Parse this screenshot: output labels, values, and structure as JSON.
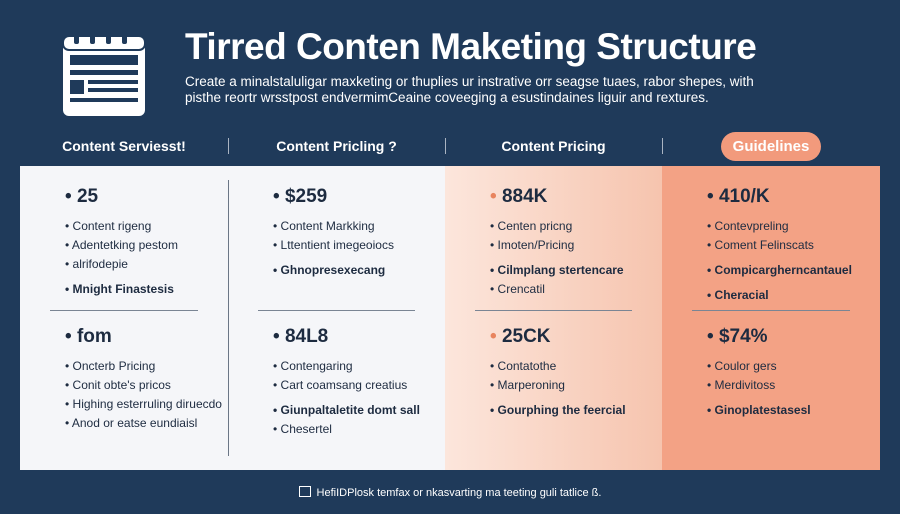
{
  "header": {
    "title": "Tirred Conten Maketing Structure",
    "subtitle": [
      "Create a minalstaluligar maxketing or thuplies ur instrative orr seagse tuaes, rabor shepes, with",
      "pisthe reortr wrsstpost endvermimCeaine coveeging a esustindaines liguir and rextures."
    ]
  },
  "columns": [
    {
      "heading": "Content Serviesst!",
      "sections": [
        {
          "headline": "25",
          "items": [
            {
              "text": "Content rigeng"
            },
            {
              "text": "Adentetking pestom"
            },
            {
              "text": "alrifodepie"
            },
            {
              "text": "Mnight Finastesis",
              "strong": true
            }
          ]
        },
        {
          "headline": "fom",
          "items": [
            {
              "text": "Oncterb Pricing"
            },
            {
              "text": "Conit obte's pricos"
            },
            {
              "text": "Highing esterruling diruecdo"
            },
            {
              "text": "Anod or eatse eundiaisl"
            }
          ]
        }
      ]
    },
    {
      "heading": "Content Pricling ?",
      "sections": [
        {
          "headline": "$259",
          "items": [
            {
              "text": "Content Markking"
            },
            {
              "text": "Lttentient imegeoiocs"
            },
            {
              "text": "Ghnopresexecang",
              "strong": true
            }
          ]
        },
        {
          "headline": "84L8",
          "items": [
            {
              "text": "Contengaring"
            },
            {
              "text": "Cart coamsang creatius"
            },
            {
              "text": "Giunpaltaletite domt sall",
              "strong": true
            },
            {
              "text": "Chesertel"
            }
          ]
        }
      ]
    },
    {
      "heading": "Content Pricing",
      "sections": [
        {
          "headline": "884K",
          "items": [
            {
              "text": "Centen pricng"
            },
            {
              "text": "Imoten/Pricing"
            },
            {
              "text": "Cilmplang stertencare",
              "strong": true
            },
            {
              "text": "Crencatil"
            }
          ]
        },
        {
          "headline": "25CK",
          "items": [
            {
              "text": "Contatothe"
            },
            {
              "text": "Marperoning"
            },
            {
              "text": "Gourphing the feercial",
              "strong": true
            }
          ]
        }
      ]
    },
    {
      "heading": "Guidelines",
      "sections": [
        {
          "headline": "410/K",
          "items": [
            {
              "text": "Contevpreling"
            },
            {
              "text": "Coment Felinscats"
            },
            {
              "text": "Compicargherncantauel",
              "strong": true
            },
            {
              "text": "Cheracial",
              "strong": true
            }
          ]
        },
        {
          "headline": "$74%",
          "items": [
            {
              "text": "Coulor gers"
            },
            {
              "text": "Merdivitoss"
            },
            {
              "text": "Ginoplatestasesl",
              "strong": true
            }
          ]
        }
      ]
    }
  ],
  "footer": "HefiIDPlosk temfax or nkasvarting ma teeting guli tatlice ß."
}
